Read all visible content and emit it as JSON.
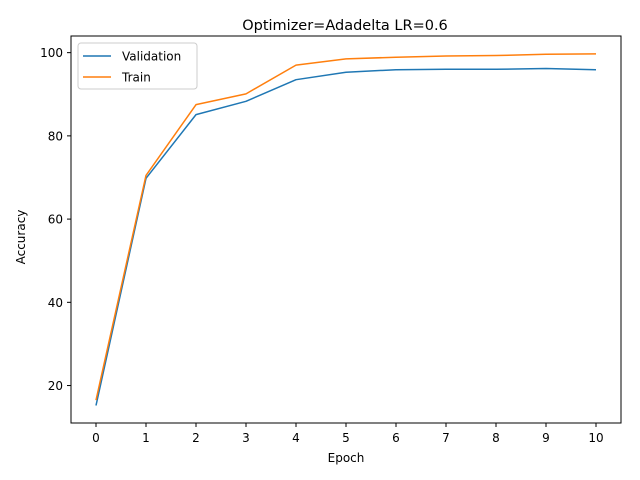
{
  "chart_data": {
    "type": "line",
    "title": "Optimizer=Adadelta LR=0.6",
    "xlabel": "Epoch",
    "ylabel": "Accuracy",
    "x": [
      0,
      1,
      2,
      3,
      4,
      5,
      6,
      7,
      8,
      9,
      10
    ],
    "xticks": [
      0,
      1,
      2,
      3,
      4,
      5,
      6,
      7,
      8,
      9,
      10
    ],
    "yticks": [
      20,
      40,
      60,
      80,
      100
    ],
    "xlim": [
      -0.5,
      10.5
    ],
    "ylim": [
      11,
      104
    ],
    "grid": false,
    "legend_position": "upper-left",
    "series": [
      {
        "name": "Validation",
        "color": "#1f77b4",
        "values": [
          15.2,
          69.8,
          85.1,
          88.3,
          93.5,
          95.3,
          95.9,
          96.0,
          96.0,
          96.2,
          95.9
        ]
      },
      {
        "name": "Train",
        "color": "#ff7f0e",
        "values": [
          16.5,
          70.5,
          87.5,
          90.1,
          97.0,
          98.5,
          98.9,
          99.2,
          99.3,
          99.6,
          99.7
        ]
      }
    ]
  }
}
